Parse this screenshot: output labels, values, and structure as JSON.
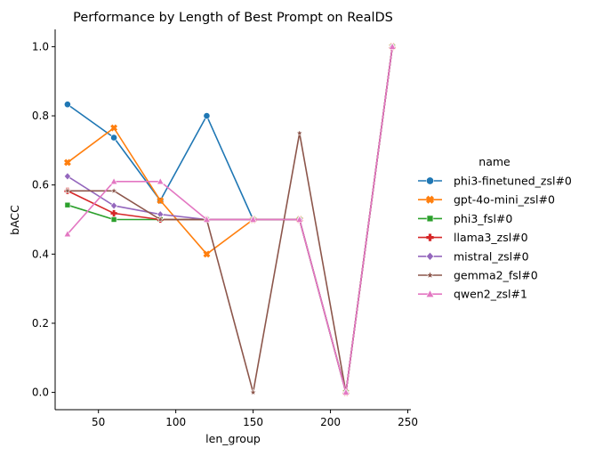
{
  "chart_data": {
    "type": "line",
    "title": "Performance by Length of  Best Prompt on RealDS",
    "xlabel": "len_group",
    "ylabel": "bACC",
    "xlim": [
      22,
      252
    ],
    "ylim": [
      -0.05,
      1.05
    ],
    "xticks": [
      50,
      100,
      150,
      200,
      250
    ],
    "yticks": [
      0.0,
      0.2,
      0.4,
      0.6,
      0.8,
      1.0
    ],
    "grid": false,
    "legend": {
      "title": "name",
      "placement": "right"
    },
    "series": [
      {
        "name": "phi3-finetuned_zsl#0",
        "color": "#1f77b4",
        "marker": "circle",
        "x": [
          30,
          60,
          90,
          120,
          150,
          180,
          210,
          240
        ],
        "y": [
          0.833,
          0.737,
          0.555,
          0.8,
          0.5,
          0.5,
          0.0,
          1.0
        ]
      },
      {
        "name": "gpt-4o-mini_zsl#0",
        "color": "#ff7f0e",
        "marker": "x",
        "x": [
          30,
          60,
          90,
          120,
          150,
          180,
          210,
          240
        ],
        "y": [
          0.665,
          0.765,
          0.555,
          0.4,
          0.5,
          0.5,
          0.0,
          1.0
        ]
      },
      {
        "name": "phi3_fsl#0",
        "color": "#2ca02c",
        "marker": "square",
        "x": [
          30,
          60,
          90,
          120,
          150,
          180,
          210,
          240
        ],
        "y": [
          0.542,
          0.5,
          0.5,
          0.5,
          0.5,
          0.5,
          0.0,
          1.0
        ]
      },
      {
        "name": "llama3_zsl#0",
        "color": "#d62728",
        "marker": "plus",
        "x": [
          30,
          60,
          90,
          120,
          150,
          180,
          210,
          240
        ],
        "y": [
          0.583,
          0.518,
          0.5,
          0.5,
          0.5,
          0.5,
          0.0,
          1.0
        ]
      },
      {
        "name": "mistral_zsl#0",
        "color": "#9467bd",
        "marker": "diamond",
        "x": [
          30,
          60,
          90,
          120,
          150,
          180,
          210,
          240
        ],
        "y": [
          0.625,
          0.54,
          0.515,
          0.5,
          0.5,
          0.5,
          0.0,
          1.0
        ]
      },
      {
        "name": "gemma2_fsl#0",
        "color": "#8c564b",
        "marker": "star",
        "x": [
          30,
          60,
          90,
          120,
          150,
          180,
          210,
          240
        ],
        "y": [
          0.583,
          0.583,
          0.5,
          0.5,
          0.0,
          0.75,
          0.0,
          1.0
        ]
      },
      {
        "name": "qwen2_zsl#1",
        "color": "#e377c2",
        "marker": "triangle",
        "x": [
          30,
          60,
          90,
          120,
          150,
          180,
          210,
          240
        ],
        "y": [
          0.458,
          0.61,
          0.61,
          0.5,
          0.5,
          0.5,
          0.0,
          1.0
        ]
      }
    ]
  }
}
